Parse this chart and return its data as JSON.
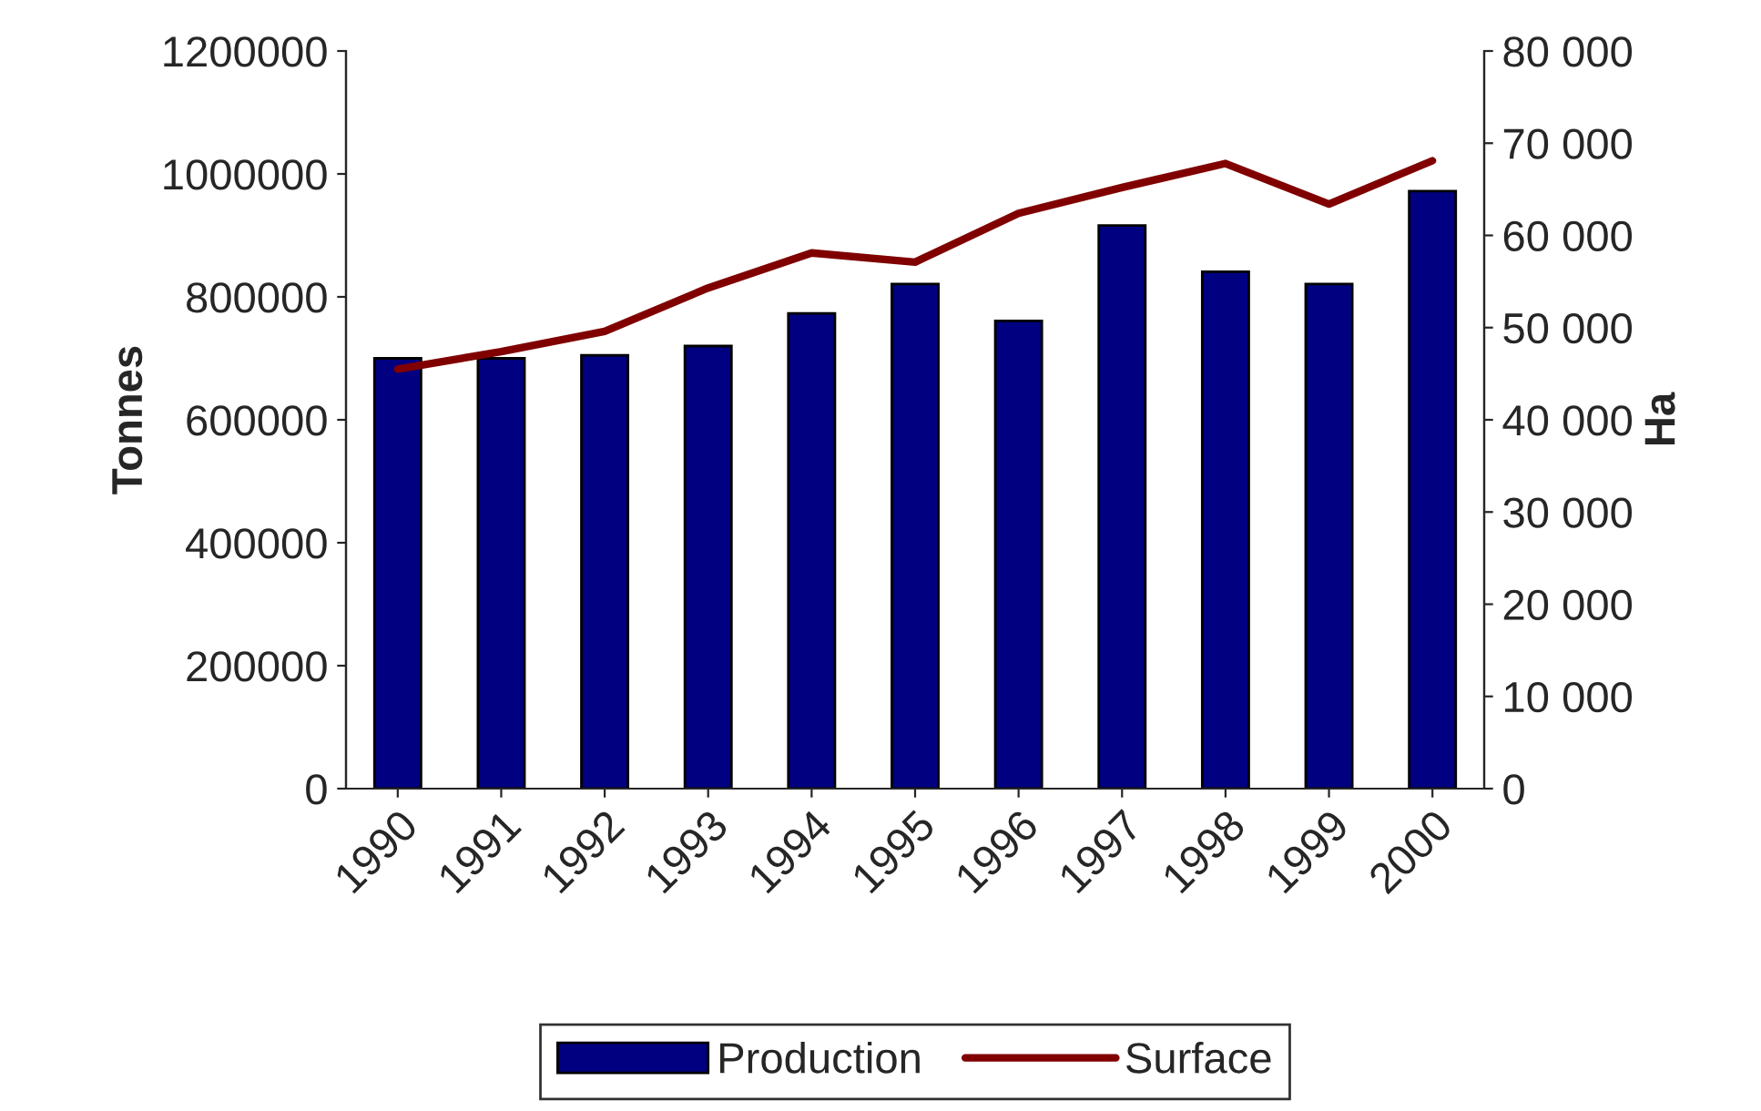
{
  "chart_data": {
    "type": "bar",
    "ylabel": "Tonnes",
    "y2label": "Ha",
    "categories": [
      "1990",
      "1991",
      "1992",
      "1993",
      "1994",
      "1995",
      "1996",
      "1997",
      "1998",
      "1999",
      "2000"
    ],
    "series": [
      {
        "name": "Production",
        "color": "#000080",
        "values": [
          700000,
          700000,
          705000,
          720000,
          773000,
          821000,
          761000,
          916000,
          841000,
          821000,
          972000
        ]
      },
      {
        "name": "Surface",
        "type": "line",
        "axis": "y2",
        "color": "#800000",
        "values": [
          45500,
          47400,
          49600,
          54300,
          58100,
          57100,
          62400,
          65200,
          67800,
          63400,
          68100
        ]
      }
    ],
    "ylim": [
      0,
      1200000
    ],
    "yticks": [
      0,
      200000,
      400000,
      600000,
      800000,
      1000000,
      1200000
    ],
    "y2lim": [
      0,
      80000
    ],
    "y2ticks": [
      0,
      {
        "value": 10000,
        "label": "10 000"
      },
      {
        "value": 20000,
        "label": "20 000"
      },
      {
        "value": 30000,
        "label": "30 000"
      },
      {
        "value": 40000,
        "label": "40 000"
      },
      {
        "value": 50000,
        "label": "50 000"
      },
      {
        "value": 60000,
        "label": "60 000"
      },
      {
        "value": 70000,
        "label": "70 000"
      },
      {
        "value": 80000,
        "label": "80 000"
      }
    ],
    "grid": false,
    "legend": "bottom"
  }
}
